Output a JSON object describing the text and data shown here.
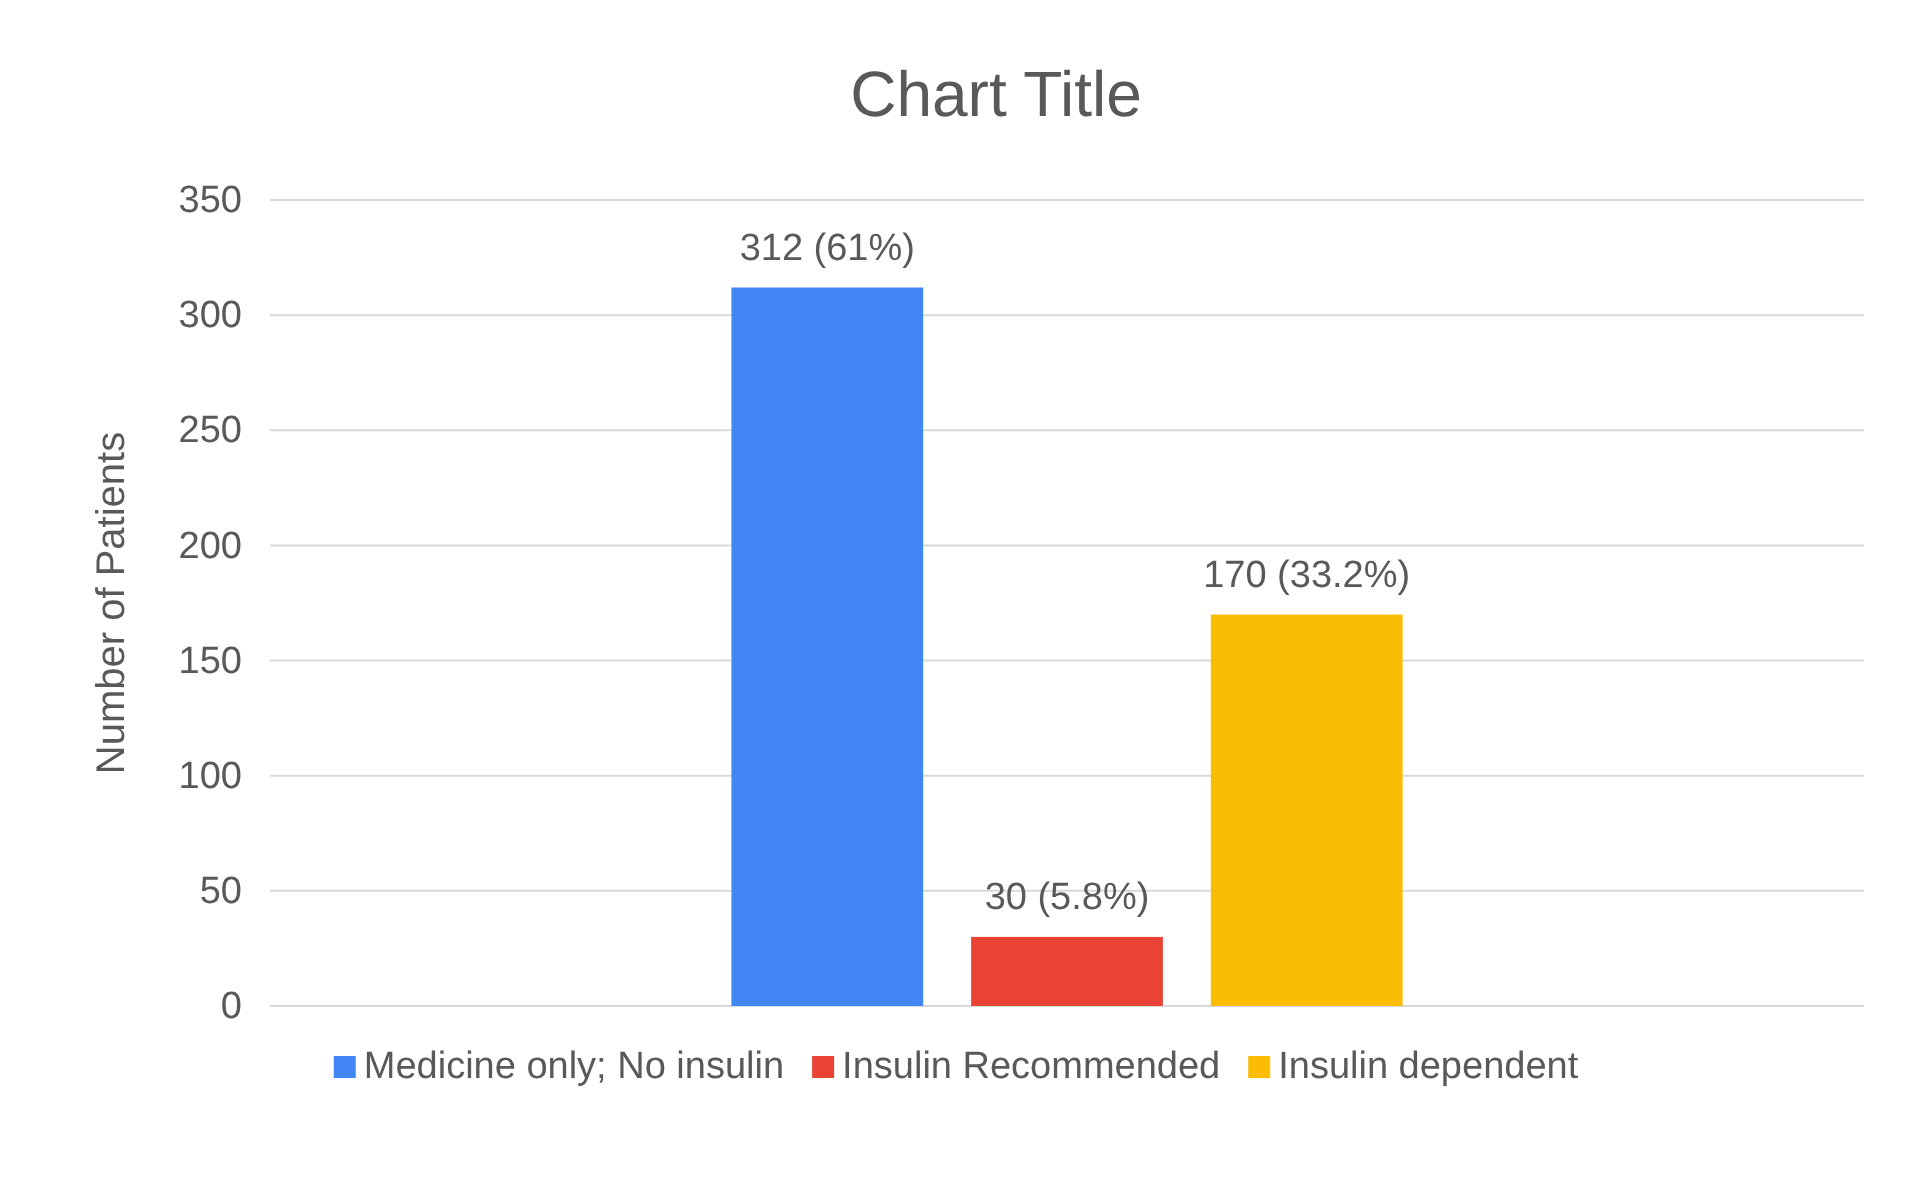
{
  "chart_data": {
    "type": "bar",
    "title": "Chart Title",
    "ylabel": "Number of Patients",
    "categories": [
      null
    ],
    "series": [
      {
        "name": "Medicine only; No insulin",
        "color": "#4285f4",
        "values": [
          312
        ],
        "value_labels": [
          "312 (61%)"
        ]
      },
      {
        "name": "Insulin Recommended",
        "color": "#ea4335",
        "values": [
          30
        ],
        "value_labels": [
          "30 (5.8%)"
        ]
      },
      {
        "name": "Insulin dependent",
        "color": "#fbbc04",
        "values": [
          170
        ],
        "value_labels": [
          "170 (33.2%)"
        ]
      }
    ],
    "ylim": [
      0,
      350
    ],
    "yticks": [
      0,
      50,
      100,
      150,
      200,
      250,
      300,
      350
    ],
    "grid": "y",
    "legend": "bottom"
  }
}
